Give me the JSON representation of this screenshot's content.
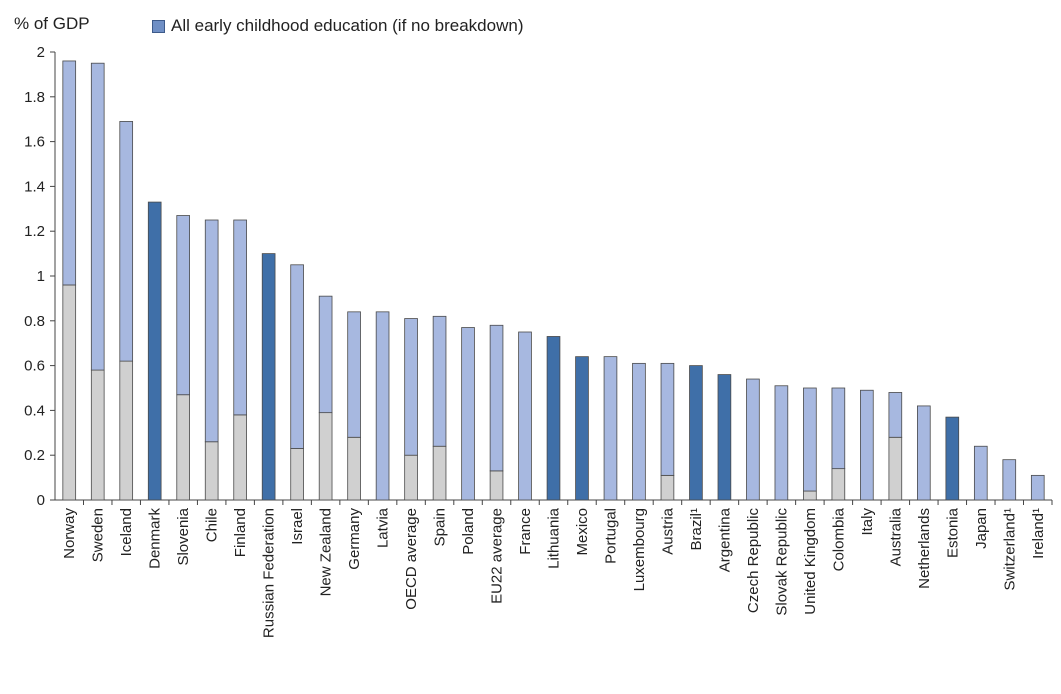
{
  "chart_data": {
    "type": "bar",
    "ylabel": "% of GDP",
    "ylim": [
      0,
      2
    ],
    "yticks": [
      0,
      0.2,
      0.4,
      0.6,
      0.8,
      1,
      1.2,
      1.4,
      1.6,
      1.8,
      2
    ],
    "ytick_labels": [
      "0",
      "0.2",
      "0.4",
      "0.6",
      "0.8",
      "1",
      "1.2",
      "1.4",
      "1.6",
      "1.8",
      "2"
    ],
    "legend_position": "top",
    "legend": [
      {
        "name": "All early childhood education (if no breakdown)",
        "color": "#3f6fa8"
      }
    ],
    "colors": {
      "lower": "#d0d0d0",
      "upper": "#a7b8e0",
      "total": "#3f6fa8",
      "edge": "#4a4a4a"
    },
    "categories": [
      "Norway",
      "Sweden",
      "Iceland",
      "Denmark",
      "Slovenia",
      "Chile",
      "Finland",
      "Russian Federation",
      "Israel",
      "New Zealand",
      "Germany",
      "Latvia",
      "OECD average",
      "Spain",
      "Poland",
      "EU22 average",
      "France",
      "Lithuania",
      "Mexico",
      "Portugal",
      "Luxembourg",
      "Austria",
      "Brazil¹",
      "Argentina",
      "Czech Republic",
      "Slovak Republic",
      "United Kingdom",
      "Colombia",
      "Italy",
      "Australia",
      "Netherlands",
      "Estonia",
      "Japan",
      "Switzerland¹",
      "Ireland¹"
    ],
    "series": [
      {
        "values": [
          0.96,
          0.58,
          0.62,
          null,
          0.47,
          0.26,
          0.38,
          null,
          0.23,
          0.39,
          0.28,
          null,
          0.2,
          0.24,
          null,
          0.13,
          null,
          null,
          null,
          null,
          null,
          0.11,
          null,
          null,
          null,
          null,
          0.04,
          0.14,
          null,
          0.28,
          null,
          null,
          null,
          null,
          null
        ]
      },
      {
        "values": [
          1.0,
          1.37,
          1.07,
          null,
          0.8,
          0.99,
          0.87,
          null,
          0.82,
          0.52,
          0.56,
          0.84,
          0.61,
          0.58,
          0.77,
          0.65,
          0.75,
          null,
          null,
          0.64,
          0.61,
          0.5,
          null,
          null,
          0.54,
          0.51,
          0.46,
          0.36,
          0.49,
          0.2,
          0.42,
          null,
          0.24,
          0.18,
          0.11
        ]
      },
      {
        "name": "All early childhood education (if no breakdown)",
        "values": [
          null,
          null,
          null,
          1.33,
          null,
          null,
          null,
          1.1,
          null,
          null,
          null,
          null,
          null,
          null,
          null,
          null,
          null,
          0.73,
          0.64,
          null,
          null,
          null,
          0.6,
          0.56,
          null,
          null,
          null,
          null,
          null,
          null,
          null,
          0.37,
          null,
          null,
          null
        ]
      }
    ]
  }
}
